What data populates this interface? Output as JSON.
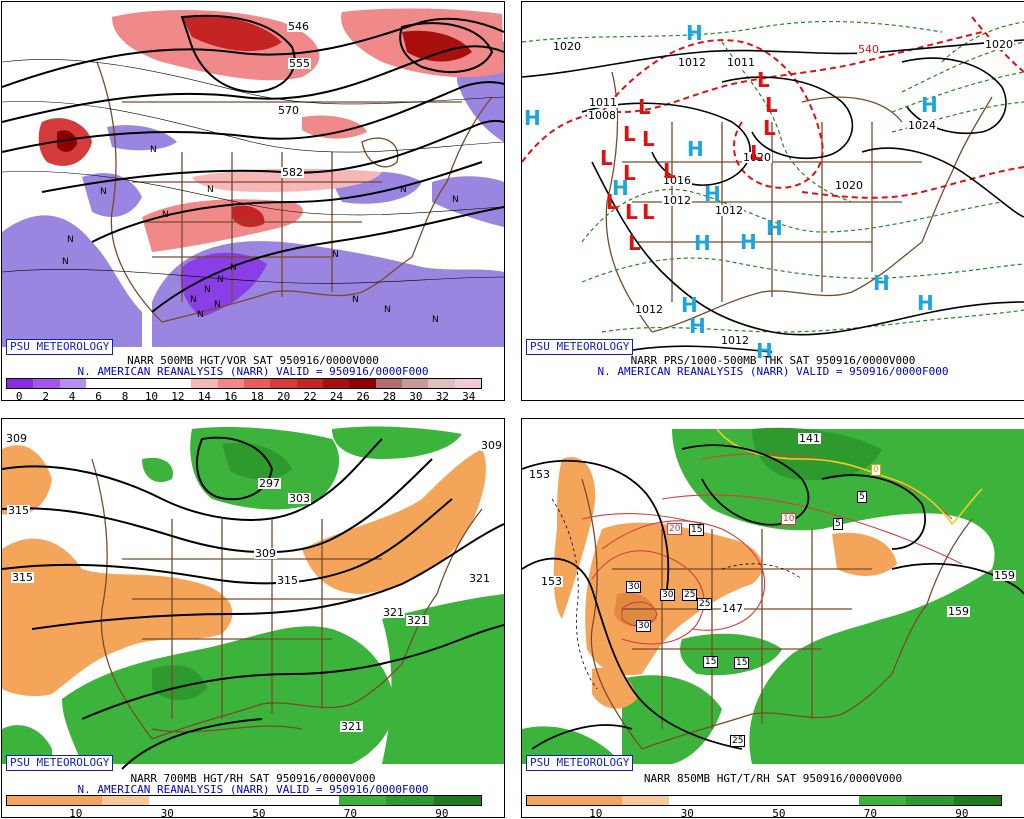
{
  "panels": {
    "p1": {
      "brand": "PSU METEOROLOGY",
      "caption1": "NARR 500MB HGT/VOR SAT 950916/0000V000",
      "caption2": "N. AMERICAN REANALYSIS (NARR) VALID = 950916/0000F000",
      "contour_labels": [
        "546",
        "555",
        "570",
        "582"
      ],
      "scale_ticks": [
        "0",
        "2",
        "4",
        "6",
        "8",
        "10",
        "12",
        "14",
        "16",
        "18",
        "20",
        "22",
        "24",
        "26",
        "28",
        "30",
        "32",
        "34"
      ],
      "scale_colors": [
        "#8a2be2",
        "#a855f0",
        "#b491f0",
        "#ffffff",
        "#ffffff",
        "#ffffff",
        "#ffffff",
        "#f5b7b7",
        "#f08a8a",
        "#e85c5c",
        "#d63b3b",
        "#c42424",
        "#a81010",
        "#8c0000",
        "#b36b6b",
        "#c89a9a",
        "#e0bebe",
        "#f4c8d8"
      ]
    },
    "p2": {
      "brand": "PSU METEOROLOGY",
      "caption1": "NARR PRS/1000-500MB THK SAT 950916/0000V000",
      "caption2": "N. AMERICAN REANALYSIS (NARR) VALID = 950916/0000F000",
      "contour_labels": [
        "1020",
        "1020",
        "1011",
        "1011",
        "1008",
        "1020",
        "1016",
        "1012",
        "1012",
        "1012",
        "1012",
        "1012",
        "1020",
        "1024",
        "540"
      ],
      "high_marker": "H",
      "low_marker": "L"
    },
    "p3": {
      "brand": "PSU METEOROLOGY",
      "caption1": "NARR 700MB HGT/RH SAT 950916/0000V000",
      "caption2": "N. AMERICAN REANALYSIS (NARR) VALID = 950916/0000F000",
      "contour_labels": [
        "309",
        "315",
        "315",
        "297",
        "303",
        "309",
        "315",
        "321",
        "321",
        "321",
        "321",
        "309"
      ],
      "scale_ticks": [
        "10",
        "30",
        "50",
        "70",
        "90"
      ],
      "scale_colors": [
        "#f4a460",
        "#f4a460",
        "#f7c89a",
        "#ffffff",
        "#ffffff",
        "#ffffff",
        "#ffffff",
        "#3cb43c",
        "#2e9a2e",
        "#1e7a1e"
      ]
    },
    "p4": {
      "brand": "PSU METEOROLOGY",
      "caption1": "NARR 850MB HGT/T/RH SAT 950916/0000V000",
      "caption2": "",
      "contour_labels": [
        "153",
        "153",
        "147",
        "159",
        "159",
        "141"
      ],
      "boxed_labels": [
        "20",
        "15",
        "10",
        "5",
        "5",
        "0",
        "30",
        "30",
        "25",
        "25",
        "30",
        "15",
        "15",
        "25"
      ],
      "scale_ticks": [
        "10",
        "30",
        "50",
        "70",
        "90"
      ],
      "scale_colors": [
        "#f4a460",
        "#f4a460",
        "#f7c89a",
        "#ffffff",
        "#ffffff",
        "#ffffff",
        "#ffffff",
        "#3cb43c",
        "#2e9a2e",
        "#1e7a1e"
      ]
    }
  }
}
